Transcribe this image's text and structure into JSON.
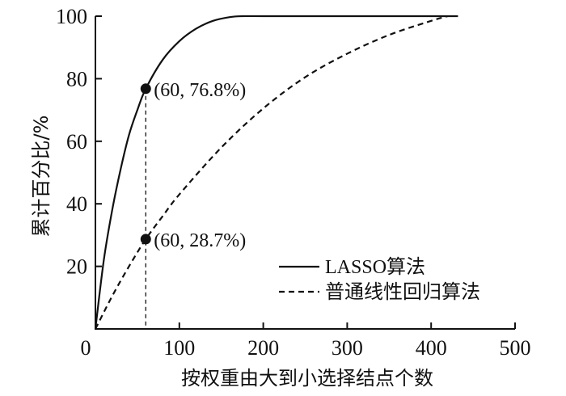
{
  "chart_data": {
    "type": "line",
    "xlabel": "按权重由大到小选择结点个数",
    "ylabel": "累计百分比/%",
    "xlim": [
      0,
      500
    ],
    "ylim": [
      0,
      100
    ],
    "x_ticks": [
      "0",
      "100",
      "200",
      "300",
      "400",
      "500"
    ],
    "y_ticks": [
      "20",
      "40",
      "60",
      "80",
      "100"
    ],
    "grid": false,
    "legend_position": "bottom-right",
    "series": [
      {
        "name": "LASSO算法",
        "style": "solid",
        "x": [
          0,
          10,
          20,
          30,
          40,
          50,
          60,
          80,
          100,
          120,
          140,
          160,
          175,
          200,
          300,
          400,
          432
        ],
        "y": [
          0,
          22,
          38,
          51,
          62,
          70,
          76.8,
          86,
          92,
          96,
          98.5,
          99.7,
          100,
          100,
          100,
          100,
          100
        ]
      },
      {
        "name": "普通线性回归算法",
        "style": "dashed",
        "x": [
          0,
          20,
          40,
          60,
          80,
          100,
          150,
          200,
          250,
          300,
          350,
          400,
          420
        ],
        "y": [
          0,
          10.5,
          20,
          28.7,
          36,
          43,
          58,
          70.5,
          80.5,
          88,
          94,
          98.5,
          100
        ]
      }
    ],
    "annotations": [
      {
        "x": 60,
        "y": 76.8,
        "label": "(60, 76.8%)"
      },
      {
        "x": 60,
        "y": 28.7,
        "label": "(60, 28.7%)"
      }
    ],
    "reference_line": {
      "x": 60,
      "style": "dashed"
    }
  }
}
